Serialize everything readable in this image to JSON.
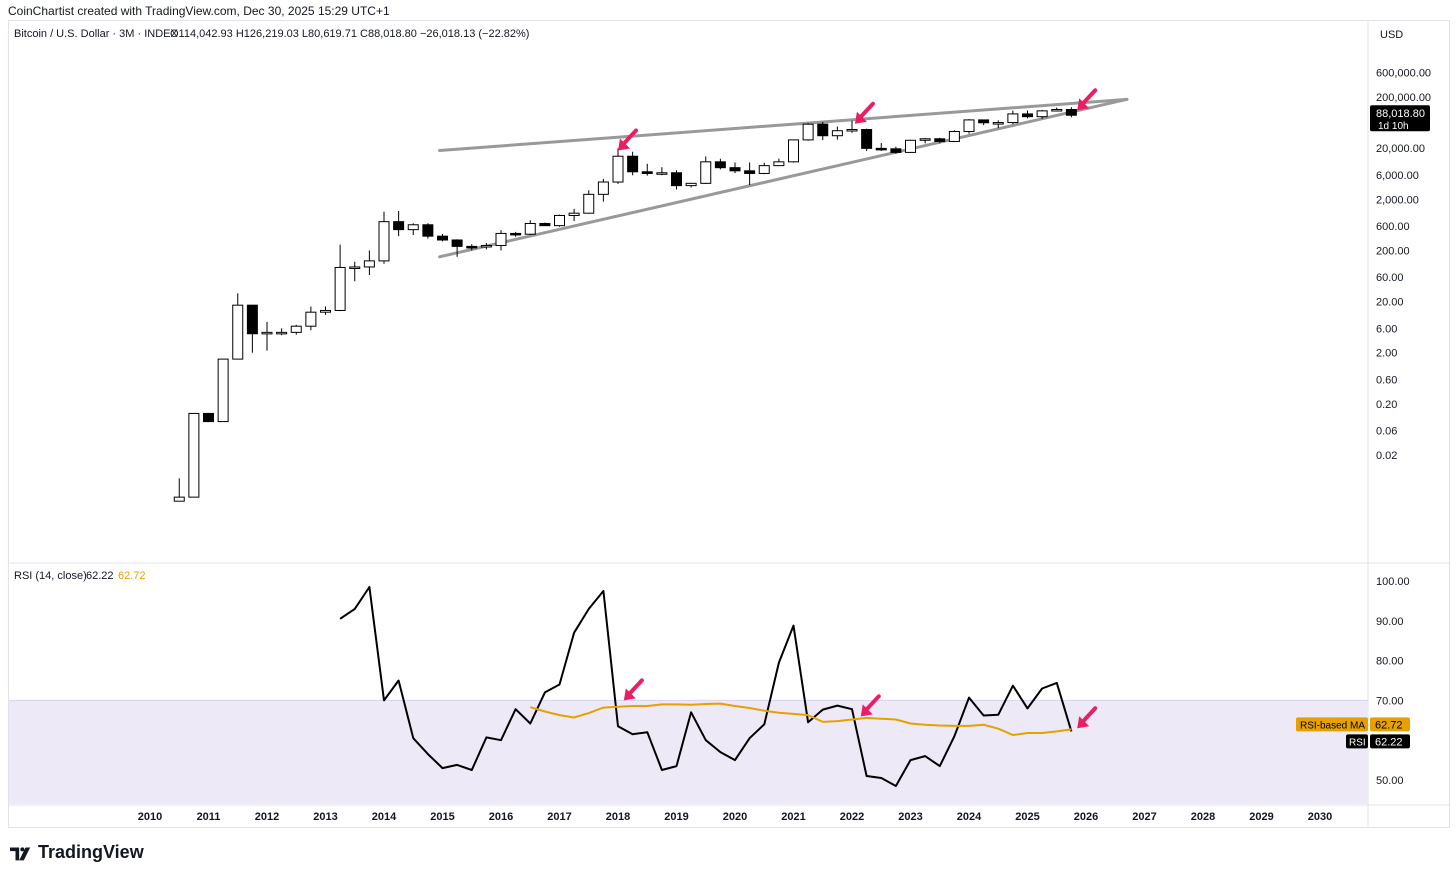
{
  "header": {
    "created_by": "CoinChartist created with TradingView.com, Dec 30, 2025 15:29 UTC+1"
  },
  "footer": {
    "brand": "TradingView"
  },
  "colors": {
    "up": "#ffffff",
    "down": "#000000",
    "wick": "#000000",
    "trendline": "#999999",
    "arrow": "#e91e63",
    "rsi": "#000000",
    "rsi_ma": "#e6a100",
    "rsi_band": "#ede9f7"
  },
  "chart_data": [
    {
      "type": "candlestick",
      "title": "Bitcoin / U.S. Dollar · 3M · INDEX",
      "ohlc_label": "O114,042.93  H126,219.03  L80,619.71  C88,018.80  −26,018.13 (−22.82%)",
      "currency": "USD",
      "scale": "log",
      "last_price": "88,018.80",
      "countdown": "1d 10h",
      "y_ticks": [
        "600,000.00",
        "200,000.00",
        "20,000.00",
        "6,000.00",
        "2,000.00",
        "600.00",
        "200.00",
        "60.00",
        "20.00",
        "6.00",
        "2.00",
        "0.60",
        "0.20",
        "0.06",
        "0.02"
      ],
      "x_ticks": [
        "2010",
        "2011",
        "2012",
        "2013",
        "2014",
        "2015",
        "2016",
        "2017",
        "2018",
        "2019",
        "2020",
        "2021",
        "2022",
        "2023",
        "2024",
        "2025",
        "2026",
        "2027",
        "2028",
        "2029",
        "2030"
      ],
      "candles": [
        {
          "t": 2010.5,
          "o": 0.0025,
          "h": 0.007,
          "l": 0.0025,
          "c": 0.003
        },
        {
          "t": 2010.75,
          "o": 0.003,
          "h": 0.13,
          "l": 0.003,
          "c": 0.13
        },
        {
          "t": 2011.0,
          "o": 0.13,
          "h": 0.13,
          "l": 0.09,
          "c": 0.09
        },
        {
          "t": 2011.25,
          "o": 0.09,
          "h": 1.5,
          "l": 0.09,
          "c": 1.5
        },
        {
          "t": 2011.5,
          "o": 1.5,
          "h": 29,
          "l": 2.5,
          "c": 17
        },
        {
          "t": 2011.75,
          "o": 17,
          "h": 17,
          "l": 2,
          "c": 4.7
        },
        {
          "t": 2012.0,
          "o": 4.7,
          "h": 8,
          "l": 2.2,
          "c": 5
        },
        {
          "t": 2012.25,
          "o": 5,
          "h": 6,
          "l": 4.4,
          "c": 5
        },
        {
          "t": 2012.5,
          "o": 5,
          "h": 7,
          "l": 4.5,
          "c": 6.6
        },
        {
          "t": 2012.75,
          "o": 6.6,
          "h": 16,
          "l": 5.5,
          "c": 12.4
        },
        {
          "t": 2013.0,
          "o": 12.4,
          "h": 16,
          "l": 11,
          "c": 13.4
        },
        {
          "t": 2013.25,
          "o": 13.4,
          "h": 260,
          "l": 13,
          "c": 93
        },
        {
          "t": 2013.5,
          "o": 93,
          "h": 120,
          "l": 50,
          "c": 95
        },
        {
          "t": 2013.75,
          "o": 95,
          "h": 200,
          "l": 66,
          "c": 125
        },
        {
          "t": 2014.0,
          "o": 125,
          "h": 1150,
          "l": 110,
          "c": 730
        },
        {
          "t": 2014.25,
          "o": 730,
          "h": 1180,
          "l": 380,
          "c": 510
        },
        {
          "t": 2014.5,
          "o": 510,
          "h": 680,
          "l": 400,
          "c": 635
        },
        {
          "t": 2014.75,
          "o": 635,
          "h": 680,
          "l": 340,
          "c": 380
        },
        {
          "t": 2015.0,
          "o": 380,
          "h": 420,
          "l": 300,
          "c": 320
        },
        {
          "t": 2015.25,
          "o": 320,
          "h": 330,
          "l": 150,
          "c": 240
        },
        {
          "t": 2015.5,
          "o": 240,
          "h": 265,
          "l": 200,
          "c": 236
        },
        {
          "t": 2015.75,
          "o": 236,
          "h": 280,
          "l": 210,
          "c": 250
        },
        {
          "t": 2016.0,
          "o": 250,
          "h": 500,
          "l": 200,
          "c": 430
        },
        {
          "t": 2016.25,
          "o": 430,
          "h": 460,
          "l": 370,
          "c": 415
        },
        {
          "t": 2016.5,
          "o": 415,
          "h": 780,
          "l": 400,
          "c": 673
        },
        {
          "t": 2016.75,
          "o": 673,
          "h": 700,
          "l": 600,
          "c": 610
        },
        {
          "t": 2017.0,
          "o": 610,
          "h": 1000,
          "l": 580,
          "c": 965
        },
        {
          "t": 2017.25,
          "o": 965,
          "h": 1300,
          "l": 750,
          "c": 1070
        },
        {
          "t": 2017.5,
          "o": 1070,
          "h": 3000,
          "l": 1050,
          "c": 2500
        },
        {
          "t": 2017.75,
          "o": 2500,
          "h": 5000,
          "l": 1800,
          "c": 4350
        },
        {
          "t": 2018.0,
          "o": 4350,
          "h": 19700,
          "l": 4000,
          "c": 13900
        },
        {
          "t": 2018.25,
          "o": 13900,
          "h": 17000,
          "l": 5900,
          "c": 6900
        },
        {
          "t": 2018.5,
          "o": 6900,
          "h": 9900,
          "l": 5800,
          "c": 6400
        },
        {
          "t": 2018.75,
          "o": 6400,
          "h": 8500,
          "l": 5900,
          "c": 6600
        },
        {
          "t": 2019.0,
          "o": 6600,
          "h": 7400,
          "l": 3100,
          "c": 3700
        },
        {
          "t": 2019.25,
          "o": 3700,
          "h": 4200,
          "l": 3400,
          "c": 4100
        },
        {
          "t": 2019.5,
          "o": 4100,
          "h": 13800,
          "l": 4000,
          "c": 10800
        },
        {
          "t": 2019.75,
          "o": 10800,
          "h": 12400,
          "l": 7700,
          "c": 8300
        },
        {
          "t": 2020.0,
          "o": 8300,
          "h": 10500,
          "l": 6500,
          "c": 7200
        },
        {
          "t": 2020.25,
          "o": 7200,
          "h": 10500,
          "l": 3800,
          "c": 6400
        },
        {
          "t": 2020.5,
          "o": 6400,
          "h": 10400,
          "l": 6200,
          "c": 9100
        },
        {
          "t": 2020.75,
          "o": 9100,
          "h": 12500,
          "l": 9000,
          "c": 10800
        },
        {
          "t": 2021.0,
          "o": 10800,
          "h": 29300,
          "l": 10400,
          "c": 29000
        },
        {
          "t": 2021.25,
          "o": 29000,
          "h": 61800,
          "l": 28000,
          "c": 58800
        },
        {
          "t": 2021.5,
          "o": 58800,
          "h": 64900,
          "l": 28800,
          "c": 35000
        },
        {
          "t": 2021.75,
          "o": 35000,
          "h": 52900,
          "l": 29300,
          "c": 43800
        },
        {
          "t": 2022.0,
          "o": 43800,
          "h": 69000,
          "l": 40000,
          "c": 46300
        },
        {
          "t": 2022.25,
          "o": 46300,
          "h": 48200,
          "l": 17600,
          "c": 19800
        },
        {
          "t": 2022.5,
          "o": 19800,
          "h": 25200,
          "l": 17600,
          "c": 19400
        },
        {
          "t": 2022.75,
          "o": 19400,
          "h": 21400,
          "l": 15500,
          "c": 16500
        },
        {
          "t": 2023.0,
          "o": 16500,
          "h": 29200,
          "l": 16500,
          "c": 28500
        },
        {
          "t": 2023.25,
          "o": 28500,
          "h": 31400,
          "l": 24800,
          "c": 30500
        },
        {
          "t": 2023.5,
          "o": 30500,
          "h": 31800,
          "l": 24900,
          "c": 27000
        },
        {
          "t": 2023.75,
          "o": 27000,
          "h": 44700,
          "l": 26500,
          "c": 42300
        },
        {
          "t": 2024.0,
          "o": 42300,
          "h": 73700,
          "l": 38500,
          "c": 71300
        },
        {
          "t": 2024.25,
          "o": 71300,
          "h": 72000,
          "l": 56500,
          "c": 62700
        },
        {
          "t": 2024.5,
          "o": 62700,
          "h": 70000,
          "l": 49000,
          "c": 63300
        },
        {
          "t": 2024.75,
          "o": 63300,
          "h": 108000,
          "l": 58900,
          "c": 93400
        },
        {
          "t": 2025.0,
          "o": 93400,
          "h": 109000,
          "l": 76600,
          "c": 82500
        },
        {
          "t": 2025.25,
          "o": 82500,
          "h": 111900,
          "l": 74500,
          "c": 107100
        },
        {
          "t": 2025.5,
          "o": 107100,
          "h": 124400,
          "l": 105000,
          "c": 114000
        },
        {
          "t": 2025.75,
          "o": 114000,
          "h": 126200,
          "l": 80600,
          "c": 88000
        }
      ],
      "trendlines": [
        {
          "name": "upper",
          "from": {
            "t": 2014.95,
            "p": 18000
          },
          "to": {
            "t": 2026.7,
            "p": 180000
          }
        },
        {
          "name": "lower",
          "from": {
            "t": 2014.95,
            "p": 150
          },
          "to": {
            "t": 2026.7,
            "p": 180000
          }
        }
      ],
      "arrows": [
        {
          "t": 2018.0,
          "p": 18000
        },
        {
          "t": 2022.05,
          "p": 60000
        },
        {
          "t": 2025.85,
          "p": 110000
        }
      ]
    },
    {
      "type": "line",
      "title": "RSI (14, close)",
      "rsi_value": "62.22",
      "ma_value": "62.72",
      "legend_ma": "RSI-based MA",
      "legend_rsi": "RSI",
      "ylim": [
        44,
        100
      ],
      "band": [
        44,
        70
      ],
      "y_ticks": [
        "100.00",
        "90.00",
        "80.00",
        "70.00",
        "60.00",
        "50.00"
      ],
      "series": [
        {
          "name": "RSI",
          "x": [
            2013.25,
            2013.5,
            2013.75,
            2014.0,
            2014.25,
            2014.5,
            2014.75,
            2015.0,
            2015.25,
            2015.5,
            2015.75,
            2016.0,
            2016.25,
            2016.5,
            2016.75,
            2017.0,
            2017.25,
            2017.5,
            2017.75,
            2018.0,
            2018.25,
            2018.5,
            2018.75,
            2019.0,
            2019.25,
            2019.5,
            2019.75,
            2020.0,
            2020.25,
            2020.5,
            2020.75,
            2021.0,
            2021.25,
            2021.5,
            2021.75,
            2022.0,
            2022.25,
            2022.5,
            2022.75,
            2023.0,
            2023.25,
            2023.5,
            2023.75,
            2024.0,
            2024.25,
            2024.5,
            2024.75,
            2025.0,
            2025.25,
            2025.5,
            2025.75
          ],
          "values": [
            90.5,
            93,
            98.5,
            70,
            75,
            60.5,
            56.5,
            53,
            53.8,
            52.5,
            60.7,
            60,
            67.8,
            64.2,
            72,
            74,
            87,
            93,
            97.5,
            63.5,
            61.5,
            62,
            52.5,
            53.5,
            67,
            60,
            57,
            55,
            60.5,
            64,
            79.5,
            88.8,
            64.5,
            67.7,
            68.7,
            67.8,
            51,
            50.5,
            48.5,
            55,
            56,
            53.5,
            61,
            70.7,
            66.2,
            66.4,
            73.7,
            68,
            73,
            74.4,
            62.2
          ]
        },
        {
          "name": "RSI-based MA",
          "x": [
            2016.5,
            2016.75,
            2017.0,
            2017.25,
            2017.5,
            2017.75,
            2018.0,
            2018.25,
            2018.5,
            2018.75,
            2019.0,
            2019.25,
            2019.5,
            2019.75,
            2020.0,
            2020.25,
            2020.5,
            2020.75,
            2021.0,
            2021.25,
            2021.5,
            2021.75,
            2022.0,
            2022.25,
            2022.5,
            2022.75,
            2023.0,
            2023.25,
            2023.5,
            2023.75,
            2024.0,
            2024.25,
            2024.5,
            2024.75,
            2025.0,
            2025.25,
            2025.5,
            2025.75
          ],
          "values": [
            68.3,
            67.2,
            66.3,
            65.7,
            66.8,
            68.2,
            68.4,
            68.6,
            68.6,
            69,
            69,
            68.9,
            69.1,
            69.2,
            68.6,
            68.1,
            67.4,
            66.9,
            66.6,
            66.3,
            64.6,
            64.8,
            65.2,
            65.6,
            65.4,
            65.2,
            64.2,
            63.9,
            63.7,
            63.6,
            63.6,
            63.9,
            62.9,
            61.3,
            61.8,
            61.8,
            62.2,
            62.72
          ]
        }
      ],
      "arrows": [
        {
          "t": 2018.1,
          "v": 70
        },
        {
          "t": 2022.15,
          "v": 66
        },
        {
          "t": 2025.85,
          "v": 63
        }
      ]
    }
  ]
}
